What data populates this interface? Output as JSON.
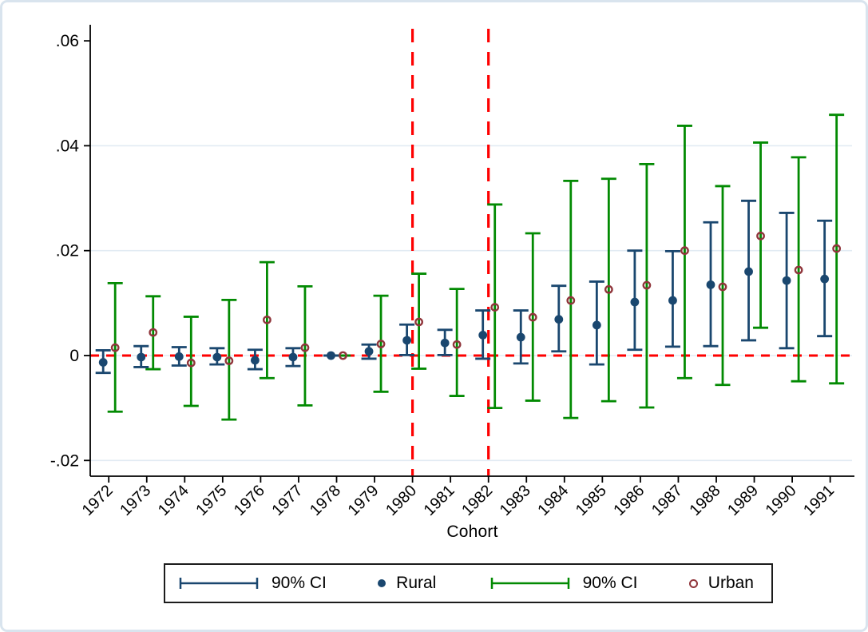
{
  "figure": {
    "xlabel": "Cohort",
    "background": "#ffffff",
    "frame_color": "#d9e4ee"
  },
  "legend": {
    "items": [
      {
        "swatch": "ci-line",
        "color": "#1a476f",
        "label": "90% CI"
      },
      {
        "swatch": "filled-circle",
        "color": "#1a476f",
        "label": "Rural"
      },
      {
        "swatch": "ci-line",
        "color": "#028a02",
        "label": "90% CI"
      },
      {
        "swatch": "hollow-circle",
        "color": "#90353b",
        "label": "Urban"
      }
    ]
  },
  "chart_data": {
    "type": "scatter",
    "subtype": "coefficient-plot-with-error-bars",
    "title": "",
    "xlabel": "Cohort",
    "ylabel": "",
    "x": [
      1972,
      1973,
      1974,
      1975,
      1976,
      1977,
      1978,
      1979,
      1980,
      1981,
      1982,
      1983,
      1984,
      1985,
      1986,
      1987,
      1988,
      1989,
      1990,
      1991
    ],
    "ylim": [
      -0.025,
      0.063
    ],
    "y_ticks": [
      {
        "label": "-.02",
        "value": -0.02,
        "grid": true
      },
      {
        "label": "0",
        "value": 0.0,
        "grid": true
      },
      {
        "label": ".02",
        "value": 0.02,
        "grid": true
      },
      {
        "label": ".04",
        "value": 0.04,
        "grid": true
      },
      {
        "label": ".06",
        "value": 0.06,
        "grid": false
      }
    ],
    "grid": true,
    "legend_position": "bottom",
    "series": [
      {
        "name": "Rural",
        "marker": "filled-circle",
        "marker_color": "#1a476f",
        "ci_label": "90% CI",
        "ci_color": "#1a476f",
        "values": [
          -0.0013,
          -0.0003,
          -0.0002,
          -0.0003,
          -0.0009,
          -0.0003,
          0.0,
          0.0008,
          0.0029,
          0.0024,
          0.0039,
          0.0035,
          0.0069,
          0.0058,
          0.0102,
          0.0105,
          0.0135,
          0.016,
          0.0143,
          0.0146
        ],
        "ci_low": [
          -0.0033,
          -0.0022,
          -0.0019,
          -0.0017,
          -0.0026,
          -0.002,
          0.0,
          -0.0006,
          0.0001,
          0.0001,
          -0.0006,
          -0.0015,
          0.0008,
          -0.0017,
          0.0011,
          0.0017,
          0.0018,
          0.0029,
          0.0014,
          0.0037
        ],
        "ci_high": [
          0.001,
          0.0018,
          0.0016,
          0.0014,
          0.0011,
          0.0014,
          0.0,
          0.0021,
          0.0059,
          0.0049,
          0.0086,
          0.0086,
          0.0133,
          0.0141,
          0.02,
          0.0199,
          0.0254,
          0.0295,
          0.0272,
          0.0257
        ]
      },
      {
        "name": "Urban",
        "marker": "hollow-circle",
        "marker_color": "#90353b",
        "ci_label": "90% CI",
        "ci_color": "#028a02",
        "values": [
          0.0015,
          0.0044,
          -0.0014,
          -0.001,
          0.0068,
          0.0015,
          0.0,
          0.0022,
          0.0064,
          0.0021,
          0.0092,
          0.0073,
          0.0105,
          0.0126,
          0.0134,
          0.02,
          0.0131,
          0.0228,
          0.0163,
          0.0204
        ],
        "ci_low": [
          -0.0107,
          -0.0026,
          -0.0096,
          -0.0122,
          -0.0043,
          -0.0095,
          0.0,
          -0.0069,
          -0.0025,
          -0.0077,
          -0.01,
          -0.0086,
          -0.0119,
          -0.0087,
          -0.0099,
          -0.0043,
          -0.0056,
          0.0053,
          -0.0049,
          -0.0053
        ],
        "ci_high": [
          0.0138,
          0.0113,
          0.0074,
          0.0106,
          0.0178,
          0.0132,
          0.0,
          0.0114,
          0.0156,
          0.0127,
          0.0288,
          0.0233,
          0.0333,
          0.0337,
          0.0365,
          0.0438,
          0.0323,
          0.0406,
          0.0378,
          0.0459
        ]
      }
    ],
    "reference_lines": {
      "horizontal": [
        {
          "y": 0.0,
          "color": "#fe0000",
          "style": "dashed"
        }
      ],
      "vertical": [
        {
          "x": 1980,
          "color": "#fe0000",
          "style": "dashed"
        },
        {
          "x": 1982,
          "color": "#fe0000",
          "style": "dashed"
        }
      ]
    },
    "gridline_color": "#e2ebf3",
    "axis_color": "#000000"
  }
}
